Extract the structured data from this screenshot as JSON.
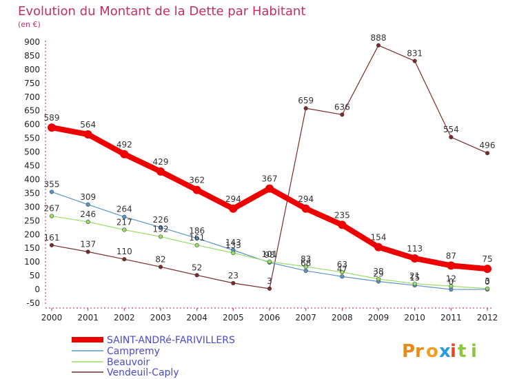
{
  "chart_data": {
    "type": "line",
    "title": "Evolution du Montant de la Dette par Habitant",
    "subtitle": "(en €)",
    "xlabel": "",
    "ylabel": "",
    "categories": [
      "2000",
      "2001",
      "2002",
      "2003",
      "2004",
      "2005",
      "2006",
      "2007",
      "2008",
      "2009",
      "2010",
      "2011",
      "2012"
    ],
    "ylim": [
      -50,
      900
    ],
    "yticks": [
      -50,
      0,
      50,
      100,
      150,
      200,
      250,
      300,
      350,
      400,
      450,
      500,
      550,
      600,
      650,
      700,
      750,
      800,
      850,
      900
    ],
    "grid": false,
    "legend_position": "bottom-left",
    "series": [
      {
        "name": "SAINT-ANDRé-FARIVILLERS",
        "color": "#ee0000",
        "values": [
          589,
          564,
          492,
          429,
          362,
          294,
          367,
          294,
          235,
          154,
          113,
          87,
          75
        ],
        "labels": [
          "589",
          "564",
          "492",
          "429",
          "362",
          "294",
          "367",
          "294",
          "235",
          "154",
          "113",
          "87",
          "75"
        ]
      },
      {
        "name": "Campremy",
        "color": "#5a93c8",
        "values": [
          355,
          309,
          264,
          226,
          186,
          143,
          98,
          68,
          47,
          29,
          15,
          0,
          0
        ],
        "labels": [
          "355",
          "309",
          "264",
          "226",
          "186",
          "143",
          "98",
          "68",
          "47",
          "29",
          "15",
          "0",
          "0"
        ]
      },
      {
        "name": "Beauvoir",
        "color": "#99dd66",
        "values": [
          267,
          246,
          217,
          192,
          161,
          133,
          101,
          83,
          63,
          38,
          21,
          12,
          3
        ],
        "labels": [
          "267",
          "246",
          "217",
          "192",
          "161",
          "133",
          "101",
          "83",
          "63",
          "38",
          "21",
          "12",
          "3"
        ]
      },
      {
        "name": "Vendeuil-Caply",
        "color": "#7a2a2a",
        "values": [
          161,
          137,
          110,
          82,
          52,
          23,
          3,
          659,
          636,
          888,
          831,
          554,
          496
        ],
        "labels": [
          "161",
          "137",
          "110",
          "82",
          "52",
          "23",
          "3",
          "659",
          "636",
          "888",
          "831",
          "554",
          "496"
        ]
      }
    ]
  },
  "logo": {
    "text": "Proxiti"
  }
}
